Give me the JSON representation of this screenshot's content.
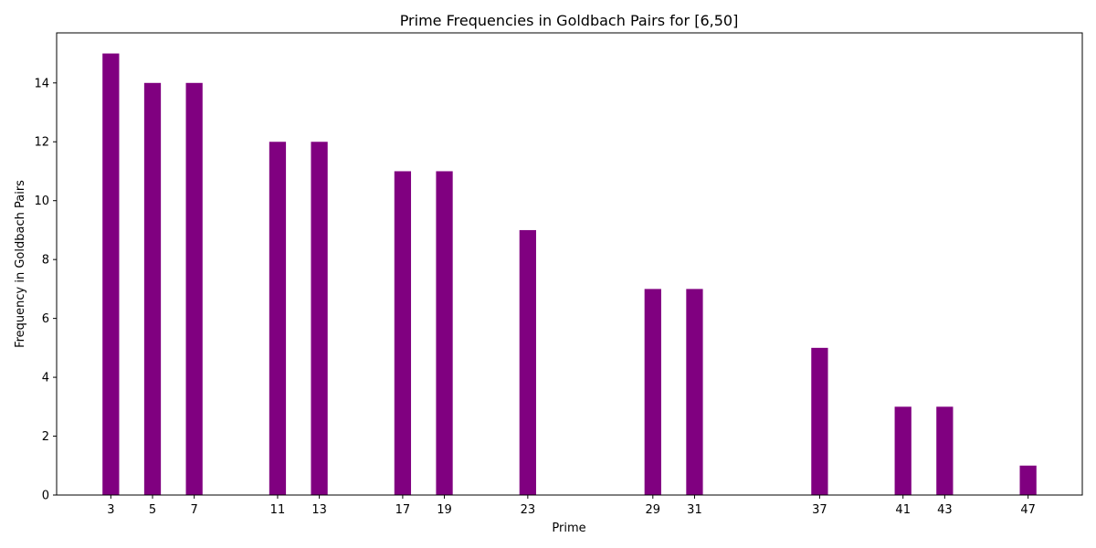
{
  "chart_data": {
    "type": "bar",
    "title": "Prime Frequencies in Goldbach Pairs for [6,50]",
    "xlabel": "Prime",
    "ylabel": "Frequency in Goldbach Pairs",
    "x": [
      3,
      5,
      7,
      11,
      13,
      17,
      19,
      23,
      29,
      31,
      37,
      41,
      43,
      47
    ],
    "categories": [
      "3",
      "5",
      "7",
      "11",
      "13",
      "17",
      "19",
      "23",
      "29",
      "31",
      "37",
      "41",
      "43",
      "47"
    ],
    "values": [
      15,
      14,
      14,
      12,
      12,
      11,
      11,
      9,
      7,
      7,
      5,
      3,
      3,
      1
    ],
    "xlim": [
      0.4,
      49.6
    ],
    "ylim": [
      0,
      15.7
    ],
    "yticks": [
      0,
      2,
      4,
      6,
      8,
      10,
      12,
      14
    ],
    "bar_width": 0.8,
    "bar_color": "#800080",
    "grid": false,
    "legend": "none"
  }
}
